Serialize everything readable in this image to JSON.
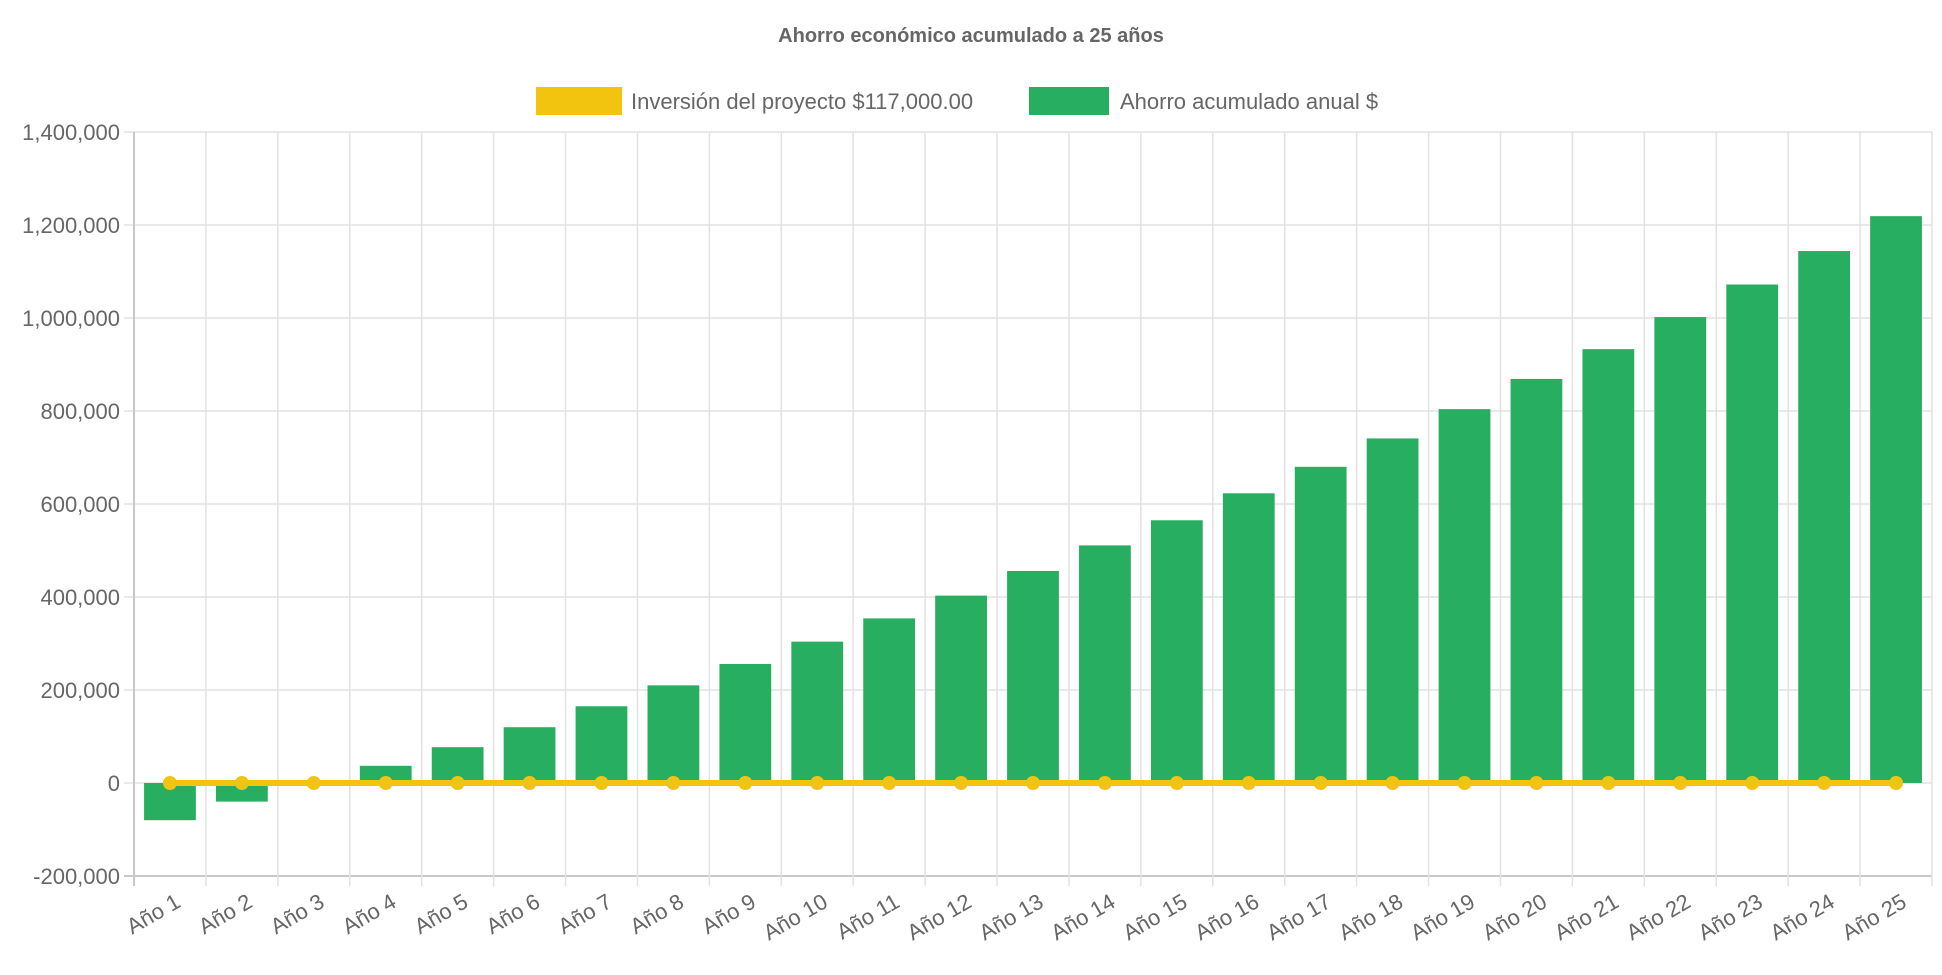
{
  "chart_data": {
    "type": "bar",
    "title": "Ahorro económico acumulado a 25 años",
    "xlabel": "",
    "ylabel": "",
    "ylim": [
      -200000,
      1400000
    ],
    "yticks": [
      -200000,
      0,
      200000,
      400000,
      600000,
      800000,
      1000000,
      1200000,
      1400000
    ],
    "ytick_labels": [
      "-200,000",
      "0",
      "200,000",
      "400,000",
      "600,000",
      "800,000",
      "1,000,000",
      "1,200,000",
      "1,400,000"
    ],
    "grid": true,
    "legend_position": "top",
    "categories": [
      "Año 1",
      "Año 2",
      "Año 3",
      "Año 4",
      "Año 5",
      "Año 6",
      "Año 7",
      "Año 8",
      "Año 9",
      "Año 10",
      "Año 11",
      "Año 12",
      "Año 13",
      "Año 14",
      "Año 15",
      "Año 16",
      "Año 17",
      "Año 18",
      "Año 19",
      "Año 20",
      "Año 21",
      "Año 22",
      "Año 23",
      "Año 24",
      "Año 25"
    ],
    "series": [
      {
        "name": "Inversión del proyecto $117,000.00",
        "type": "line",
        "color": "#F2C40F",
        "values": [
          0,
          0,
          0,
          0,
          0,
          0,
          0,
          0,
          0,
          0,
          0,
          0,
          0,
          0,
          0,
          0,
          0,
          0,
          0,
          0,
          0,
          0,
          0,
          0,
          0
        ]
      },
      {
        "name": "Ahorro acumulado anual $",
        "type": "bar",
        "color": "#27AE60",
        "values": [
          -80000,
          -40000,
          0,
          37000,
          77000,
          120000,
          165000,
          210000,
          256000,
          304000,
          354000,
          403000,
          456000,
          511000,
          565000,
          623000,
          680000,
          741000,
          804000,
          869000,
          933000,
          1002000,
          1072000,
          1144000,
          1219000
        ]
      }
    ]
  }
}
